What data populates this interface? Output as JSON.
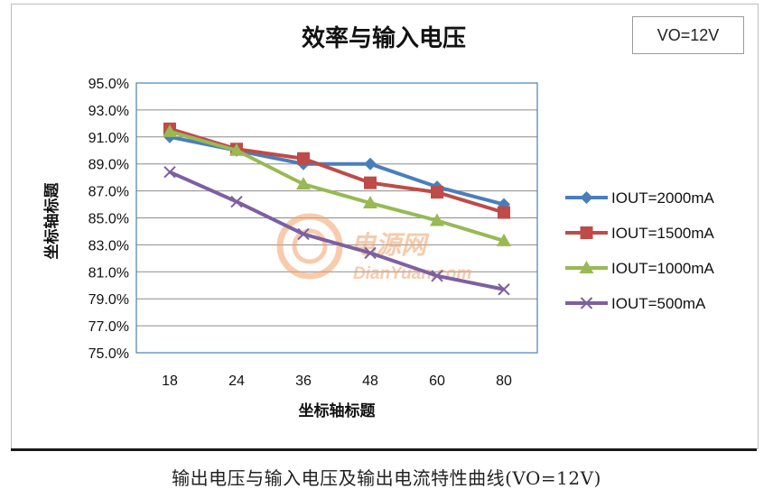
{
  "annotation": {
    "vo_label": "VO=12V"
  },
  "caption": "输出电压与输入电压及输出电流特性曲线(VO=12V)",
  "watermark": {
    "text_cn": "电源网",
    "text_en": "DianYuan.com",
    "color": "#f2a16a"
  },
  "chart_data": {
    "type": "line",
    "title": "效率与输入电压",
    "xlabel": "坐标轴标题",
    "ylabel": "坐标轴标题",
    "categories": [
      "18",
      "24",
      "36",
      "48",
      "60",
      "80"
    ],
    "ylim": [
      75.0,
      95.0
    ],
    "yticks": [
      "95.0%",
      "93.0%",
      "91.0%",
      "89.0%",
      "87.0%",
      "85.0%",
      "83.0%",
      "81.0%",
      "79.0%",
      "77.0%",
      "75.0%"
    ],
    "grid": true,
    "legend_position": "right",
    "series": [
      {
        "name": "IOUT=2000mA",
        "color": "#4a7ebb",
        "marker": "diamond",
        "values": [
          91.0,
          90.0,
          89.0,
          89.0,
          87.3,
          86.0
        ]
      },
      {
        "name": "IOUT=1500mA",
        "color": "#be4b48",
        "marker": "square",
        "values": [
          91.6,
          90.1,
          89.4,
          87.6,
          86.9,
          85.4
        ]
      },
      {
        "name": "IOUT=1000mA",
        "color": "#98b954",
        "marker": "triangle",
        "values": [
          91.4,
          90.0,
          87.5,
          86.1,
          84.8,
          83.3
        ]
      },
      {
        "name": "IOUT=500mA",
        "color": "#7d60a0",
        "marker": "x",
        "values": [
          88.4,
          86.2,
          83.8,
          82.4,
          80.7,
          79.7
        ]
      }
    ]
  }
}
